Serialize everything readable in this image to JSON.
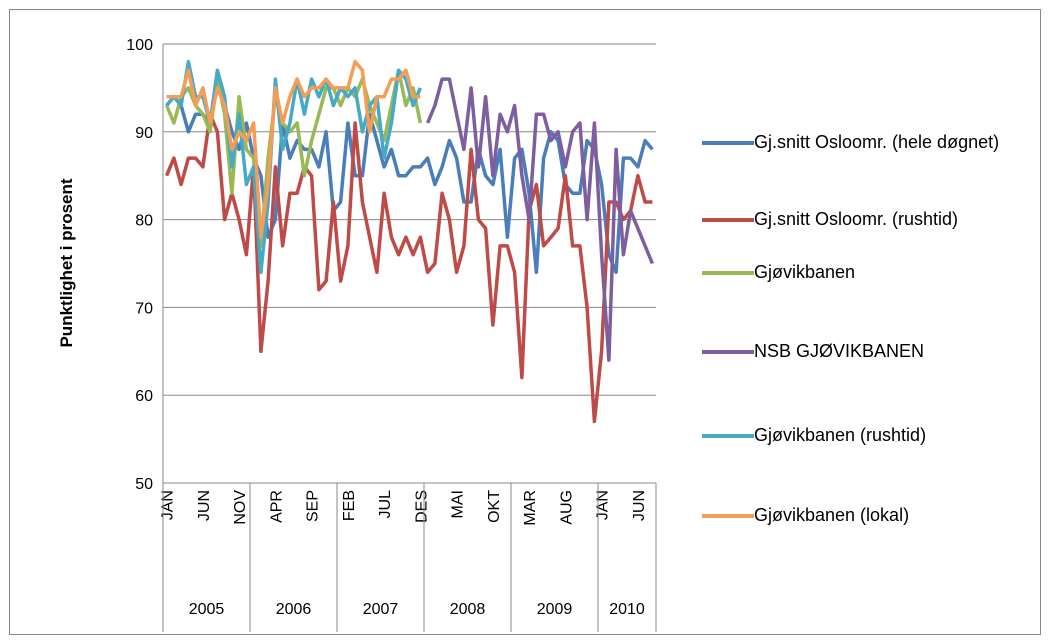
{
  "chart_data": {
    "type": "line",
    "y_label": "Punktlighet i prosent",
    "categories": [
      "JAN",
      null,
      null,
      null,
      null,
      "JUN",
      null,
      null,
      null,
      null,
      "NOV",
      null,
      null,
      null,
      null,
      "APR",
      null,
      null,
      null,
      null,
      "SEP",
      null,
      null,
      null,
      null,
      "FEB",
      null,
      null,
      null,
      null,
      "JUL",
      null,
      null,
      null,
      null,
      "DES",
      null,
      null,
      null,
      null,
      "MAI",
      null,
      null,
      null,
      null,
      "OKT",
      null,
      null,
      null,
      null,
      "MAR",
      null,
      null,
      null,
      null,
      "AUG",
      null,
      null,
      null,
      null,
      "JAN",
      null,
      null,
      null,
      null,
      "JUN",
      null,
      null
    ],
    "category_groups": [
      {
        "label": "2005",
        "span": 12
      },
      {
        "label": "2006",
        "span": 12
      },
      {
        "label": "2007",
        "span": 12
      },
      {
        "label": "2008",
        "span": 12
      },
      {
        "label": "2009",
        "span": 12
      },
      {
        "label": "2010",
        "span": 8
      }
    ],
    "ylim": [
      50,
      100
    ],
    "yticks": [
      50,
      60,
      70,
      80,
      90,
      100
    ],
    "grid": true,
    "series": [
      {
        "name": "Gj.snitt Osloomr. (hele døgnet)",
        "color": "#4a7ebb",
        "values": [
          93,
          94,
          93,
          90,
          92,
          92,
          91,
          96,
          93,
          90,
          88,
          91,
          87,
          85,
          78,
          80,
          91,
          87,
          89,
          88,
          88,
          86,
          90,
          81,
          82,
          91,
          85,
          85,
          92,
          89,
          86,
          88,
          85,
          85,
          86,
          86,
          87,
          84,
          86,
          89,
          87,
          82,
          82,
          88,
          85,
          84,
          88,
          78,
          87,
          88,
          83,
          74,
          87,
          90,
          89,
          84,
          83,
          83,
          89,
          88,
          84,
          76,
          74,
          87,
          87,
          86,
          89,
          88
        ]
      },
      {
        "name": "Gj.snitt Osloomr. (rushtid)",
        "color": "#be4b48",
        "values": [
          85,
          87,
          84,
          87,
          87,
          86,
          92,
          90,
          80,
          83,
          80,
          76,
          86,
          65,
          73,
          86,
          77,
          83,
          83,
          86,
          85,
          72,
          73,
          82,
          73,
          77,
          91,
          82,
          78,
          74,
          83,
          78,
          76,
          78,
          76,
          78,
          74,
          75,
          83,
          80,
          74,
          77,
          88,
          80,
          79,
          68,
          77,
          77,
          74,
          62,
          81,
          84,
          77,
          78,
          79,
          85,
          77,
          77,
          70,
          57,
          65,
          82,
          82,
          80,
          81,
          85,
          82,
          82
        ]
      },
      {
        "name": "Gjøvikbanen",
        "color": "#98b954",
        "values": [
          93,
          91,
          94,
          95,
          93,
          92,
          90,
          96,
          92,
          83,
          94,
          88,
          87,
          77,
          87,
          94,
          91,
          90,
          91,
          85,
          89,
          92,
          95,
          95,
          93,
          95,
          94,
          96,
          93,
          91,
          89,
          93,
          97,
          93,
          95,
          91,
          null,
          null,
          null,
          null,
          null,
          null,
          null,
          null,
          null,
          null,
          null,
          null,
          null,
          null,
          null,
          null,
          null,
          null,
          null,
          null,
          null,
          null,
          null,
          null,
          null,
          null,
          null,
          null,
          null,
          null,
          null,
          null
        ]
      },
      {
        "name": "NSB GJØVIKBANEN",
        "color": "#7d5fa0",
        "values": [
          null,
          null,
          null,
          null,
          null,
          null,
          null,
          null,
          null,
          null,
          null,
          null,
          null,
          null,
          null,
          null,
          null,
          null,
          null,
          null,
          null,
          null,
          null,
          null,
          null,
          null,
          null,
          null,
          null,
          null,
          null,
          null,
          null,
          null,
          null,
          null,
          91,
          93,
          96,
          96,
          92,
          88,
          95,
          86,
          94,
          85,
          92,
          90,
          93,
          85,
          80,
          92,
          92,
          89,
          90,
          86,
          90,
          91,
          80,
          91,
          76,
          64,
          88,
          76,
          81,
          79,
          77,
          75
        ]
      },
      {
        "name": "Gjøvikbanen (rushtid)",
        "color": "#46aac5",
        "values": [
          93,
          94,
          93,
          98,
          94,
          94,
          91,
          97,
          94,
          86,
          92,
          84,
          86,
          74,
          82,
          96,
          88,
          91,
          96,
          92,
          96,
          94,
          96,
          93,
          95,
          94,
          95,
          90,
          93,
          94,
          87,
          91,
          97,
          96,
          93,
          95,
          null,
          null,
          null,
          null,
          null,
          null,
          null,
          null,
          null,
          null,
          null,
          null,
          null,
          null,
          null,
          null,
          null,
          null,
          null,
          null,
          null,
          null,
          null,
          null,
          null,
          null,
          null,
          null,
          null,
          null,
          null,
          null
        ]
      },
      {
        "name": "Gjøvikbanen (lokal)",
        "color": "#f59d56",
        "values": [
          94,
          94,
          94,
          97,
          93,
          95,
          91,
          95,
          93,
          88,
          90,
          89,
          91,
          78,
          84,
          95,
          91,
          94,
          96,
          94,
          95,
          95,
          96,
          95,
          95,
          95,
          98,
          97,
          90,
          94,
          94,
          96,
          96,
          97,
          94,
          94,
          null,
          null,
          null,
          null,
          null,
          null,
          null,
          null,
          null,
          null,
          null,
          null,
          null,
          null,
          null,
          null,
          null,
          null,
          null,
          null,
          null,
          null,
          null,
          null,
          null,
          null,
          null,
          null,
          null,
          null,
          null,
          null
        ]
      }
    ]
  }
}
